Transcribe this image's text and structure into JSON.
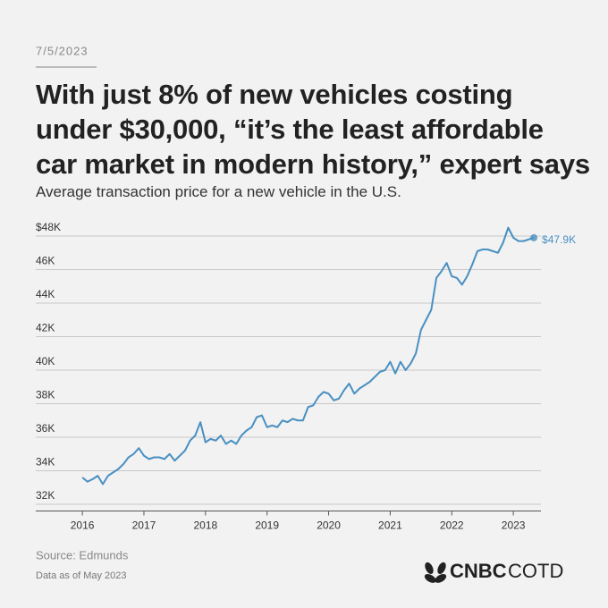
{
  "chart_data": {
    "type": "line",
    "date": "7/5/2023",
    "title": "With just 8% of new vehicles costing under $30,000, “it’s the least affordable car market in modern history,” expert says",
    "subtitle": "Average transaction price for a new vehicle in the U.S.",
    "source": "Source: Edmunds",
    "note": "Data as of May 2023",
    "annotation": "$47.9K",
    "color": "#4a90c2",
    "grid": true,
    "x": [
      2016,
      2016.083,
      2016.167,
      2016.25,
      2016.333,
      2016.417,
      2016.5,
      2016.583,
      2016.667,
      2016.75,
      2016.833,
      2016.917,
      2017,
      2017.083,
      2017.167,
      2017.25,
      2017.333,
      2017.417,
      2017.5,
      2017.583,
      2017.667,
      2017.75,
      2017.833,
      2017.917,
      2018,
      2018.083,
      2018.167,
      2018.25,
      2018.333,
      2018.417,
      2018.5,
      2018.583,
      2018.667,
      2018.75,
      2018.833,
      2018.917,
      2019,
      2019.083,
      2019.167,
      2019.25,
      2019.333,
      2019.417,
      2019.5,
      2019.583,
      2019.667,
      2019.75,
      2019.833,
      2019.917,
      2020,
      2020.083,
      2020.167,
      2020.25,
      2020.333,
      2020.417,
      2020.5,
      2020.583,
      2020.667,
      2020.75,
      2020.833,
      2020.917,
      2021,
      2021.083,
      2021.167,
      2021.25,
      2021.333,
      2021.417,
      2021.5,
      2021.583,
      2021.667,
      2021.75,
      2021.833,
      2021.917,
      2022,
      2022.083,
      2022.167,
      2022.25,
      2022.333,
      2022.417,
      2022.5,
      2022.583,
      2022.667,
      2022.75,
      2022.833,
      2022.917,
      2023,
      2023.083,
      2023.167,
      2023.25,
      2023.333
    ],
    "values": [
      33.6,
      33.35,
      33.5,
      33.7,
      33.2,
      33.7,
      33.9,
      34.1,
      34.4,
      34.8,
      35.0,
      35.35,
      34.9,
      34.7,
      34.8,
      34.8,
      34.7,
      35.0,
      34.6,
      34.9,
      35.2,
      35.8,
      36.1,
      36.9,
      35.7,
      35.9,
      35.8,
      36.1,
      35.6,
      35.8,
      35.6,
      36.1,
      36.4,
      36.6,
      37.2,
      37.3,
      36.6,
      36.7,
      36.6,
      37.0,
      36.9,
      37.1,
      37.0,
      37.0,
      37.8,
      37.9,
      38.4,
      38.7,
      38.6,
      38.2,
      38.3,
      38.8,
      39.2,
      38.6,
      38.9,
      39.1,
      39.3,
      39.6,
      39.9,
      40.0,
      40.5,
      39.8,
      40.5,
      40.0,
      40.4,
      41.0,
      42.4,
      43.0,
      43.6,
      45.5,
      45.9,
      46.4,
      45.6,
      45.5,
      45.1,
      45.6,
      46.3,
      47.1,
      47.2,
      47.2,
      47.1,
      47.0,
      47.6,
      48.5,
      47.9,
      47.7,
      47.7,
      47.8,
      47.9
    ],
    "xlim": [
      2015.65,
      2023.55
    ],
    "xticks": [
      2016,
      2017,
      2018,
      2019,
      2020,
      2021,
      2022,
      2023
    ],
    "ylim": [
      31.6,
      48.6
    ],
    "yticks": [
      {
        "value": 32,
        "label": "32K"
      },
      {
        "value": 34,
        "label": "34K"
      },
      {
        "value": 36,
        "label": "36K"
      },
      {
        "value": 38,
        "label": "38K"
      },
      {
        "value": 40,
        "label": "40K"
      },
      {
        "value": 42,
        "label": "42K"
      },
      {
        "value": 44,
        "label": "44K"
      },
      {
        "value": 46,
        "label": "46K"
      },
      {
        "value": 48,
        "label": "$48K"
      }
    ]
  },
  "brand": {
    "name": "CNBC",
    "product": "COTD"
  }
}
